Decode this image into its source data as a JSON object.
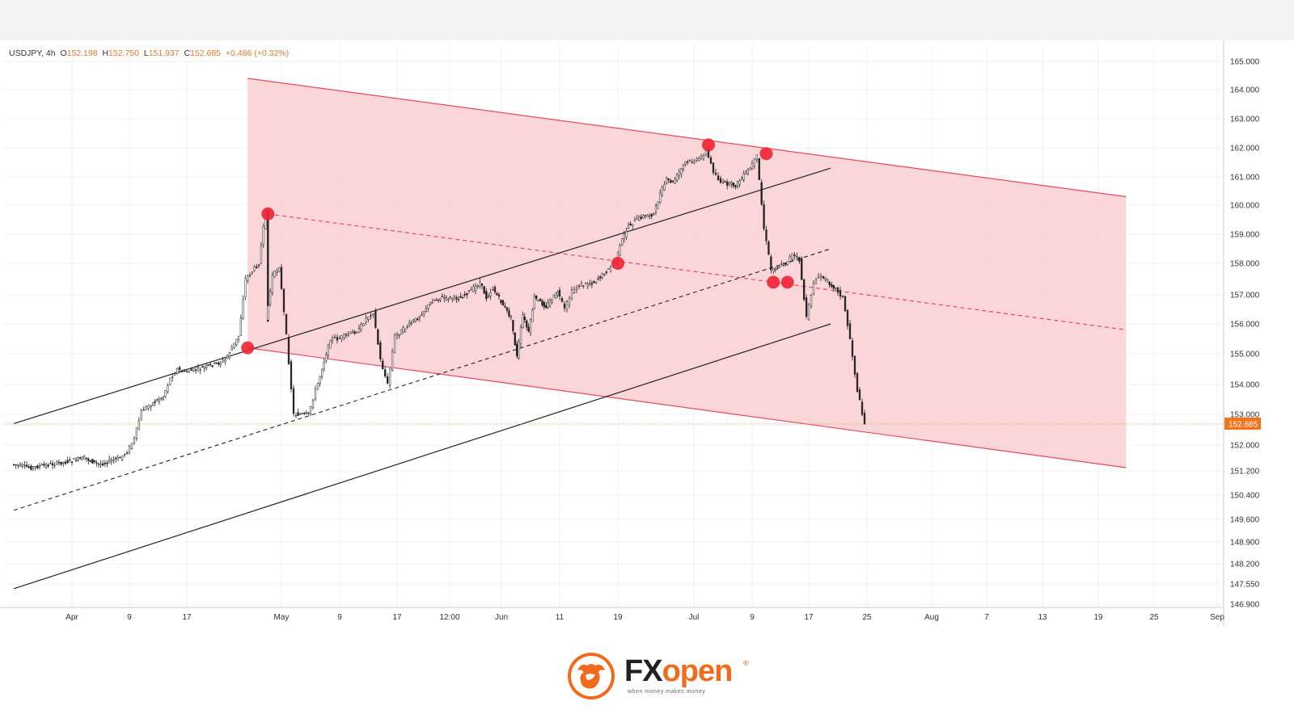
{
  "legend": {
    "symbol": "USDJPY",
    "interval": "4h",
    "o_label": "O",
    "o_value": "152.198",
    "h_label": "H",
    "h_value": "152.750",
    "l_label": "L",
    "l_value": "151.937",
    "c_label": "C",
    "c_value": "152.685",
    "change": "+0.486 (+0.32%)"
  },
  "brand": {
    "name_fx": "FX",
    "name_open": "open",
    "registered": "®",
    "tagline": "when money makes money",
    "logo_icon": "bull-icon",
    "colors": {
      "fx": "#222222",
      "open": "#f26b1d"
    }
  },
  "chart_data": {
    "type": "candlestick",
    "symbol": "USDJPY",
    "timeframe": "4h",
    "y_ticks": [
      "165.000",
      "164.000",
      "163.000",
      "162.000",
      "161.000",
      "160.000",
      "159.000",
      "158.000",
      "157.000",
      "156.000",
      "155.000",
      "154.000",
      "153.000",
      "152.000",
      "151.200",
      "150.400",
      "149.600",
      "148.900",
      "148.200",
      "147.550",
      "146.900"
    ],
    "x_ticks": [
      "Apr",
      "9",
      "17",
      "May",
      "9",
      "17",
      "12:00",
      "Jun",
      "11",
      "19",
      "Jul",
      "9",
      "17",
      "25",
      "Aug",
      "7",
      "13",
      "19",
      "25",
      "Sep"
    ],
    "last_price": "152.685",
    "last_price_color": "#f2731c",
    "channel_color": "#f9c8cc",
    "channel_line_color": "#e8485a",
    "marker_color": "#ee2233",
    "price_series": [
      {
        "date": "2024-03-26",
        "close": 151.4
      },
      {
        "date": "2024-03-28",
        "close": 151.3
      },
      {
        "date": "2024-04-01",
        "close": 151.5
      },
      {
        "date": "2024-04-03",
        "close": 151.6
      },
      {
        "date": "2024-04-05",
        "close": 151.4
      },
      {
        "date": "2024-04-08",
        "close": 151.6
      },
      {
        "date": "2024-04-09",
        "close": 151.8
      },
      {
        "date": "2024-04-10",
        "close": 152.2
      },
      {
        "date": "2024-04-11",
        "close": 153.1
      },
      {
        "date": "2024-04-12",
        "close": 153.3
      },
      {
        "date": "2024-04-14",
        "close": 153.6
      },
      {
        "date": "2024-04-15",
        "close": 154.2
      },
      {
        "date": "2024-04-16",
        "close": 154.5
      },
      {
        "date": "2024-04-17",
        "close": 154.4
      },
      {
        "date": "2024-04-19",
        "close": 154.5
      },
      {
        "date": "2024-04-22",
        "close": 154.7
      },
      {
        "date": "2024-04-23",
        "close": 154.8
      },
      {
        "date": "2024-04-24",
        "close": 155.2
      },
      {
        "date": "2024-04-25",
        "close": 155.6
      },
      {
        "date": "2024-04-26",
        "close": 157.5
      },
      {
        "date": "2024-04-28",
        "close": 158.0
      },
      {
        "date": "2024-04-29",
        "close": 159.8
      },
      {
        "date": "2024-04-29",
        "close": 156.1
      },
      {
        "date": "2024-04-30",
        "close": 157.6
      },
      {
        "date": "2024-05-01",
        "close": 157.9
      },
      {
        "date": "2024-05-02",
        "close": 155.6
      },
      {
        "date": "2024-05-03",
        "close": 153.0
      },
      {
        "date": "2024-05-05",
        "close": 153.0
      },
      {
        "date": "2024-05-06",
        "close": 153.8
      },
      {
        "date": "2024-05-08",
        "close": 155.5
      },
      {
        "date": "2024-05-09",
        "close": 155.5
      },
      {
        "date": "2024-05-12",
        "close": 155.8
      },
      {
        "date": "2024-05-13",
        "close": 156.2
      },
      {
        "date": "2024-05-14",
        "close": 156.4
      },
      {
        "date": "2024-05-15",
        "close": 154.8
      },
      {
        "date": "2024-05-16",
        "close": 154.0
      },
      {
        "date": "2024-05-17",
        "close": 155.6
      },
      {
        "date": "2024-05-20",
        "close": 156.2
      },
      {
        "date": "2024-05-22",
        "close": 156.8
      },
      {
        "date": "2024-05-23",
        "close": 156.9
      },
      {
        "date": "2024-05-26",
        "close": 156.9
      },
      {
        "date": "2024-05-28",
        "close": 157.2
      },
      {
        "date": "2024-05-29",
        "close": 157.4
      },
      {
        "date": "2024-05-30",
        "close": 156.9
      },
      {
        "date": "2024-05-31",
        "close": 157.2
      },
      {
        "date": "2024-06-03",
        "close": 156.2
      },
      {
        "date": "2024-06-04",
        "close": 154.9
      },
      {
        "date": "2024-06-05",
        "close": 156.3
      },
      {
        "date": "2024-06-06",
        "close": 155.7
      },
      {
        "date": "2024-06-07",
        "close": 156.9
      },
      {
        "date": "2024-06-09",
        "close": 156.6
      },
      {
        "date": "2024-06-11",
        "close": 157.1
      },
      {
        "date": "2024-06-12",
        "close": 156.5
      },
      {
        "date": "2024-06-13",
        "close": 157.1
      },
      {
        "date": "2024-06-14",
        "close": 157.3
      },
      {
        "date": "2024-06-16",
        "close": 157.4
      },
      {
        "date": "2024-06-18",
        "close": 157.8
      },
      {
        "date": "2024-06-19",
        "close": 158.1
      },
      {
        "date": "2024-06-20",
        "close": 158.8
      },
      {
        "date": "2024-06-21",
        "close": 159.3
      },
      {
        "date": "2024-06-23",
        "close": 159.6
      },
      {
        "date": "2024-06-25",
        "close": 159.7
      },
      {
        "date": "2024-06-26",
        "close": 160.4
      },
      {
        "date": "2024-06-27",
        "close": 160.9
      },
      {
        "date": "2024-06-28",
        "close": 160.8
      },
      {
        "date": "2024-06-30",
        "close": 161.5
      },
      {
        "date": "2024-07-02",
        "close": 161.6
      },
      {
        "date": "2024-07-03",
        "close": 161.9
      },
      {
        "date": "2024-07-04",
        "close": 161.2
      },
      {
        "date": "2024-07-05",
        "close": 160.8
      },
      {
        "date": "2024-07-07",
        "close": 160.7
      },
      {
        "date": "2024-07-09",
        "close": 161.3
      },
      {
        "date": "2024-07-10",
        "close": 161.7
      },
      {
        "date": "2024-07-11",
        "close": 159.2
      },
      {
        "date": "2024-07-12",
        "close": 157.8
      },
      {
        "date": "2024-07-14",
        "close": 158.0
      },
      {
        "date": "2024-07-15",
        "close": 158.3
      },
      {
        "date": "2024-07-16",
        "close": 158.1
      },
      {
        "date": "2024-07-17",
        "close": 156.2
      },
      {
        "date": "2024-07-18",
        "close": 157.4
      },
      {
        "date": "2024-07-19",
        "close": 157.6
      },
      {
        "date": "2024-07-21",
        "close": 157.2
      },
      {
        "date": "2024-07-22",
        "close": 156.9
      },
      {
        "date": "2024-07-23",
        "close": 155.5
      },
      {
        "date": "2024-07-24",
        "close": 153.8
      },
      {
        "date": "2024-07-25",
        "close": 152.7
      }
    ],
    "markers": [
      {
        "date": "2024-04-29",
        "price": 159.7
      },
      {
        "date": "2024-04-26",
        "price": 155.2
      },
      {
        "date": "2024-06-19",
        "price": 158.0
      },
      {
        "date": "2024-07-03",
        "price": 162.1
      },
      {
        "date": "2024-07-11",
        "price": 161.8
      },
      {
        "date": "2024-07-12",
        "price": 157.4
      },
      {
        "date": "2024-07-14",
        "price": 157.4
      }
    ],
    "descending_channel": {
      "upper": [
        {
          "date": "2024-04-26",
          "price": 164.4
        },
        {
          "date": "2024-08-22",
          "price": 160.3
        }
      ],
      "lower": [
        {
          "date": "2024-04-26",
          "price": 155.2
        },
        {
          "date": "2024-08-22",
          "price": 151.3
        }
      ],
      "median": [
        {
          "date": "2024-04-29",
          "price": 159.7
        },
        {
          "date": "2024-08-22",
          "price": 155.8
        }
      ]
    },
    "ascending_channel": {
      "upper": [
        {
          "date": "2024-03-26",
          "price": 152.7
        },
        {
          "date": "2024-07-20",
          "price": 161.3
        }
      ],
      "lower": [
        {
          "date": "2024-03-26",
          "price": 147.4
        },
        {
          "date": "2024-07-20",
          "price": 156.0
        }
      ],
      "median": [
        {
          "date": "2024-03-26",
          "price": 149.9
        },
        {
          "date": "2024-07-20",
          "price": 158.5
        }
      ]
    }
  }
}
